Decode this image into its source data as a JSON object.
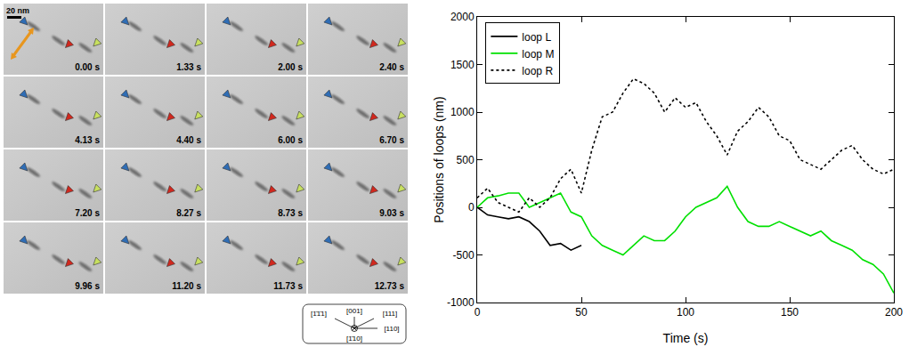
{
  "chart_data": {
    "type": "line",
    "xlabel": "Time (s)",
    "ylabel": "Positions of loops (nm)",
    "xlim": [
      0,
      200
    ],
    "xticks": [
      0,
      50,
      100,
      150,
      200
    ],
    "ylim": [
      -1000,
      2000
    ],
    "yticks": [
      -1000,
      -500,
      0,
      500,
      1000,
      1500,
      2000
    ],
    "grid": false,
    "legend": "upper left",
    "series": [
      {
        "name": "loop L",
        "color": "#000000",
        "line_style": "solid",
        "x": [
          0,
          5,
          10,
          15,
          20,
          25,
          30,
          35,
          40,
          45,
          50
        ],
        "values": [
          0,
          -80,
          -100,
          -120,
          -100,
          -150,
          -250,
          -400,
          -380,
          -450,
          -400
        ]
      },
      {
        "name": "loop M",
        "color": "#00e000",
        "line_style": "solid",
        "x": [
          0,
          5,
          10,
          15,
          20,
          25,
          30,
          35,
          40,
          45,
          50,
          55,
          60,
          65,
          70,
          75,
          80,
          85,
          90,
          95,
          100,
          105,
          110,
          115,
          120,
          125,
          130,
          135,
          140,
          145,
          150,
          155,
          160,
          165,
          170,
          175,
          180,
          185,
          190,
          195,
          200
        ],
        "values": [
          0,
          100,
          120,
          150,
          150,
          0,
          50,
          100,
          150,
          -50,
          -100,
          -300,
          -400,
          -450,
          -500,
          -400,
          -300,
          -350,
          -350,
          -250,
          -100,
          0,
          50,
          100,
          220,
          0,
          -150,
          -200,
          -200,
          -150,
          -200,
          -250,
          -300,
          -250,
          -350,
          -400,
          -450,
          -550,
          -600,
          -700,
          -900
        ]
      },
      {
        "name": "loop R",
        "color": "#000000",
        "line_style": "dotted",
        "x": [
          0,
          5,
          10,
          15,
          20,
          25,
          30,
          35,
          40,
          45,
          50,
          55,
          60,
          65,
          70,
          75,
          80,
          85,
          90,
          95,
          100,
          105,
          110,
          115,
          120,
          125,
          130,
          135,
          140,
          145,
          150,
          155,
          160,
          165,
          170,
          175,
          180,
          185,
          190,
          195,
          200
        ],
        "values": [
          100,
          200,
          50,
          0,
          -50,
          100,
          0,
          100,
          300,
          400,
          150,
          600,
          950,
          1000,
          1200,
          1350,
          1300,
          1200,
          1000,
          1150,
          1050,
          1100,
          900,
          750,
          550,
          800,
          900,
          1050,
          950,
          750,
          700,
          500,
          450,
          400,
          500,
          600,
          650,
          500,
          400,
          350,
          400
        ]
      }
    ]
  },
  "image_panel": {
    "scale_bar": "20 nm",
    "frames": [
      "0.00 s",
      "1.33 s",
      "2.00 s",
      "2.40 s",
      "4.13 s",
      "4.40 s",
      "6.00 s",
      "6.70 s",
      "7.20 s",
      "8.27 s",
      "8.73 s",
      "9.03 s",
      "9.96 s",
      "11.20 s",
      "11.73 s",
      "12.73 s"
    ],
    "orientation_labels": {
      "top_left": "[1̄1̄1]",
      "top": "[001]",
      "top_right": "[111]",
      "right": "[110]",
      "bottom": "[1̄10]"
    }
  }
}
